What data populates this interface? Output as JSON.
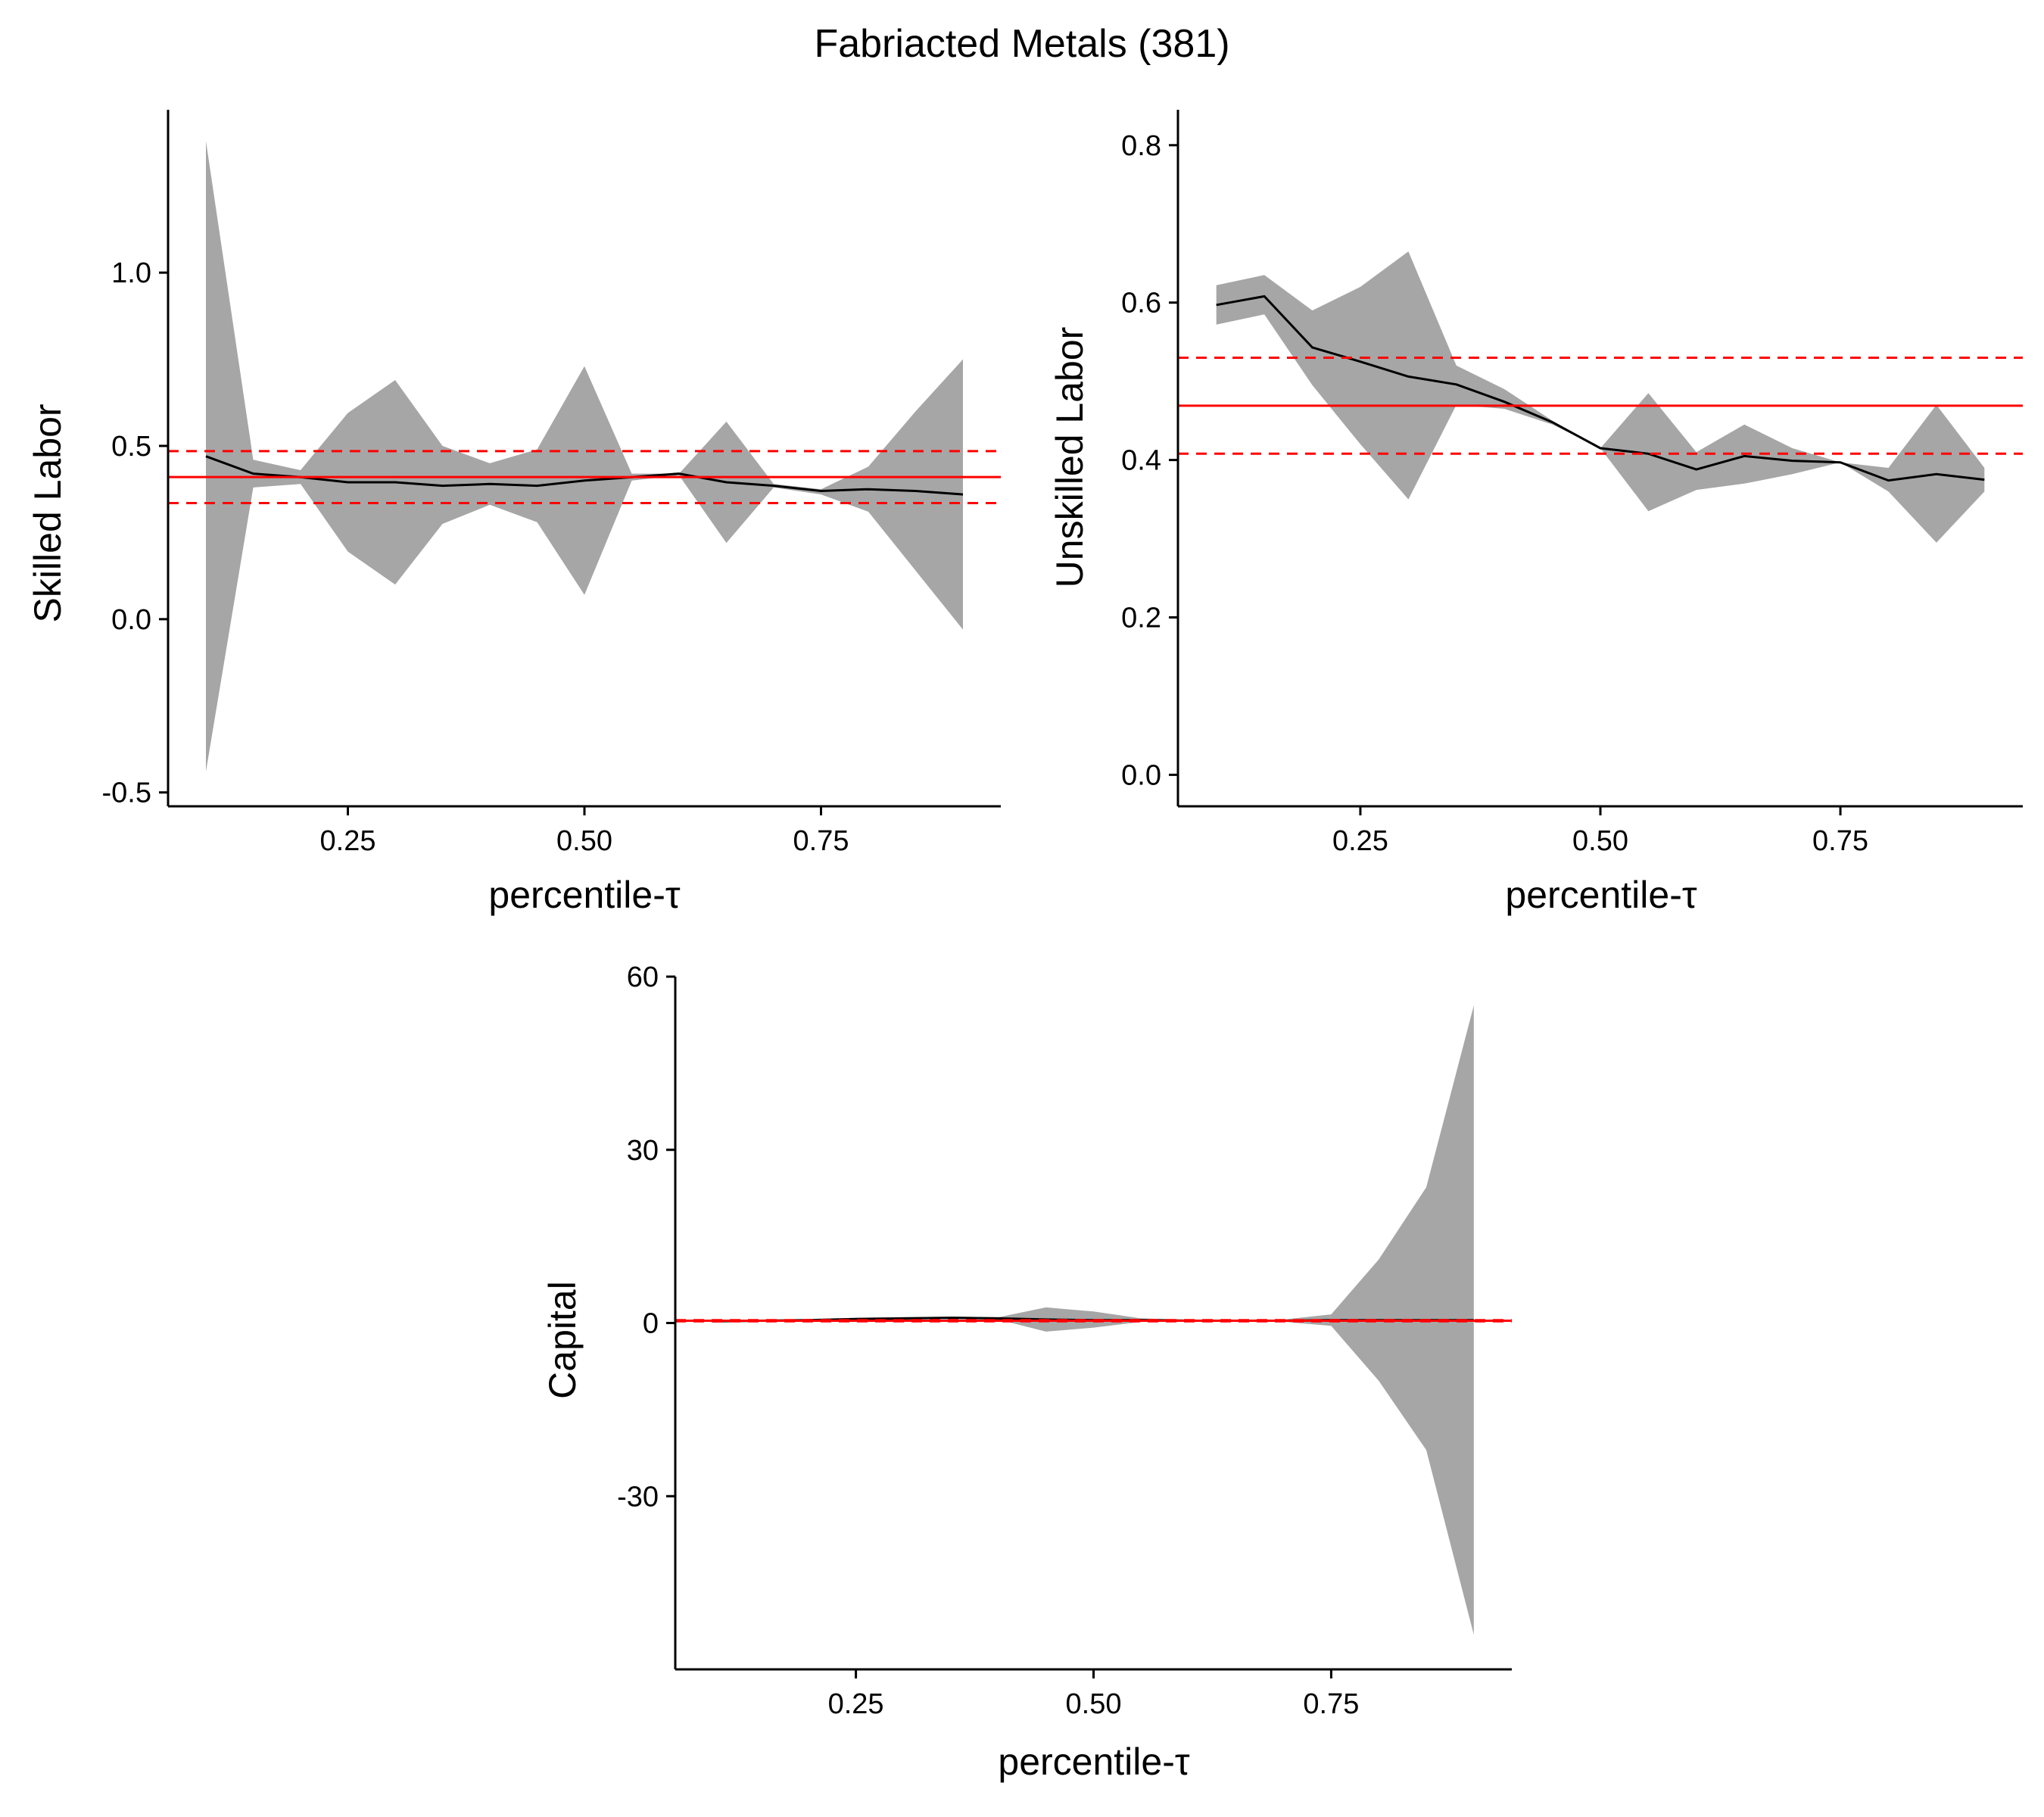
{
  "figure": {
    "title": "Fabriacted Metals (381)"
  },
  "colors": {
    "band": "#a6a6a6",
    "estimate_line": "#000000",
    "ols_line": "#ff0000",
    "axis": "#000000"
  },
  "chart_data": [
    {
      "id": "skilled",
      "type": "line",
      "xlabel": "percentile-τ",
      "ylabel": "Skilled Labor",
      "xlim": [
        0.06,
        0.94
      ],
      "ylim": [
        -0.54,
        1.47
      ],
      "xticks": [
        0.25,
        0.5,
        0.75
      ],
      "xtick_labels": [
        "0.25",
        "0.50",
        "0.75"
      ],
      "yticks": [
        -0.5,
        0.0,
        0.5,
        1.0
      ],
      "ytick_labels": [
        "-0.5",
        "0.0",
        "0.5",
        "1.0"
      ],
      "x": [
        0.1,
        0.15,
        0.2,
        0.25,
        0.3,
        0.35,
        0.4,
        0.45,
        0.5,
        0.55,
        0.6,
        0.65,
        0.7,
        0.75,
        0.8,
        0.85,
        0.9
      ],
      "estimate": [
        0.47,
        0.42,
        0.41,
        0.395,
        0.395,
        0.385,
        0.39,
        0.385,
        0.4,
        0.41,
        0.42,
        0.395,
        0.385,
        0.37,
        0.375,
        0.37,
        0.36
      ],
      "band_upper": [
        1.38,
        0.46,
        0.43,
        0.595,
        0.69,
        0.5,
        0.45,
        0.49,
        0.73,
        0.42,
        0.42,
        0.57,
        0.39,
        0.375,
        0.44,
        0.6,
        0.75
      ],
      "band_lower": [
        -0.44,
        0.38,
        0.39,
        0.195,
        0.1,
        0.275,
        0.33,
        0.28,
        0.07,
        0.4,
        0.415,
        0.22,
        0.38,
        0.36,
        0.31,
        0.14,
        -0.03
      ],
      "ols_estimate": 0.41,
      "ols_ci": [
        0.335,
        0.485
      ]
    },
    {
      "id": "unskilled",
      "type": "line",
      "xlabel": "percentile-τ",
      "ylabel": "Unskilled Labor",
      "xlim": [
        0.06,
        0.94
      ],
      "ylim": [
        -0.04,
        0.845
      ],
      "xticks": [
        0.25,
        0.5,
        0.75
      ],
      "xtick_labels": [
        "0.25",
        "0.50",
        "0.75"
      ],
      "yticks": [
        0.0,
        0.2,
        0.4,
        0.6,
        0.8
      ],
      "ytick_labels": [
        "0.0",
        "0.2",
        "0.4",
        "0.6",
        "0.8"
      ],
      "x": [
        0.1,
        0.15,
        0.2,
        0.25,
        0.3,
        0.35,
        0.4,
        0.45,
        0.5,
        0.55,
        0.6,
        0.65,
        0.7,
        0.75,
        0.8,
        0.85,
        0.9
      ],
      "estimate": [
        0.597,
        0.608,
        0.543,
        0.525,
        0.506,
        0.496,
        0.474,
        0.448,
        0.415,
        0.408,
        0.388,
        0.405,
        0.399,
        0.397,
        0.374,
        0.382,
        0.375
      ],
      "band_upper": [
        0.622,
        0.635,
        0.59,
        0.62,
        0.665,
        0.52,
        0.49,
        0.45,
        0.415,
        0.485,
        0.41,
        0.445,
        0.415,
        0.397,
        0.39,
        0.47,
        0.39
      ],
      "band_lower": [
        0.572,
        0.585,
        0.495,
        0.42,
        0.35,
        0.47,
        0.465,
        0.445,
        0.415,
        0.335,
        0.362,
        0.37,
        0.382,
        0.397,
        0.36,
        0.295,
        0.36
      ],
      "ols_estimate": 0.469,
      "ols_ci": [
        0.408,
        0.53
      ]
    },
    {
      "id": "capital",
      "type": "line",
      "xlabel": "percentile-τ",
      "ylabel": "Capital",
      "xlim": [
        0.06,
        0.94
      ],
      "ylim": [
        -60,
        60
      ],
      "xticks": [
        0.25,
        0.5,
        0.75
      ],
      "xtick_labels": [
        "0.25",
        "0.50",
        "0.75"
      ],
      "yticks": [
        -30,
        0,
        30,
        60
      ],
      "ytick_labels": [
        "-30",
        "0",
        "30",
        "60"
      ],
      "x": [
        0.1,
        0.15,
        0.2,
        0.25,
        0.3,
        0.35,
        0.4,
        0.45,
        0.5,
        0.55,
        0.6,
        0.65,
        0.7,
        0.75,
        0.8,
        0.85,
        0.9
      ],
      "estimate": [
        0.3,
        0.4,
        0.5,
        0.7,
        0.8,
        0.9,
        0.8,
        0.6,
        0.5,
        0.5,
        0.4,
        0.4,
        0.4,
        0.5,
        0.5,
        0.5,
        0.5
      ],
      "band_upper": [
        0.5,
        0.6,
        0.7,
        0.9,
        1.0,
        1.1,
        1.0,
        2.7,
        2.0,
        0.8,
        0.6,
        0.6,
        0.6,
        1.5,
        11.0,
        23.5,
        55.0
      ],
      "band_lower": [
        0.1,
        0.2,
        0.3,
        0.5,
        0.6,
        0.7,
        0.6,
        -1.5,
        -0.8,
        0.2,
        0.2,
        0.2,
        0.2,
        -0.5,
        -10.0,
        -22.0,
        -54.0
      ],
      "ols_estimate": 0.4,
      "ols_ci": [
        0.3,
        0.5
      ]
    }
  ]
}
